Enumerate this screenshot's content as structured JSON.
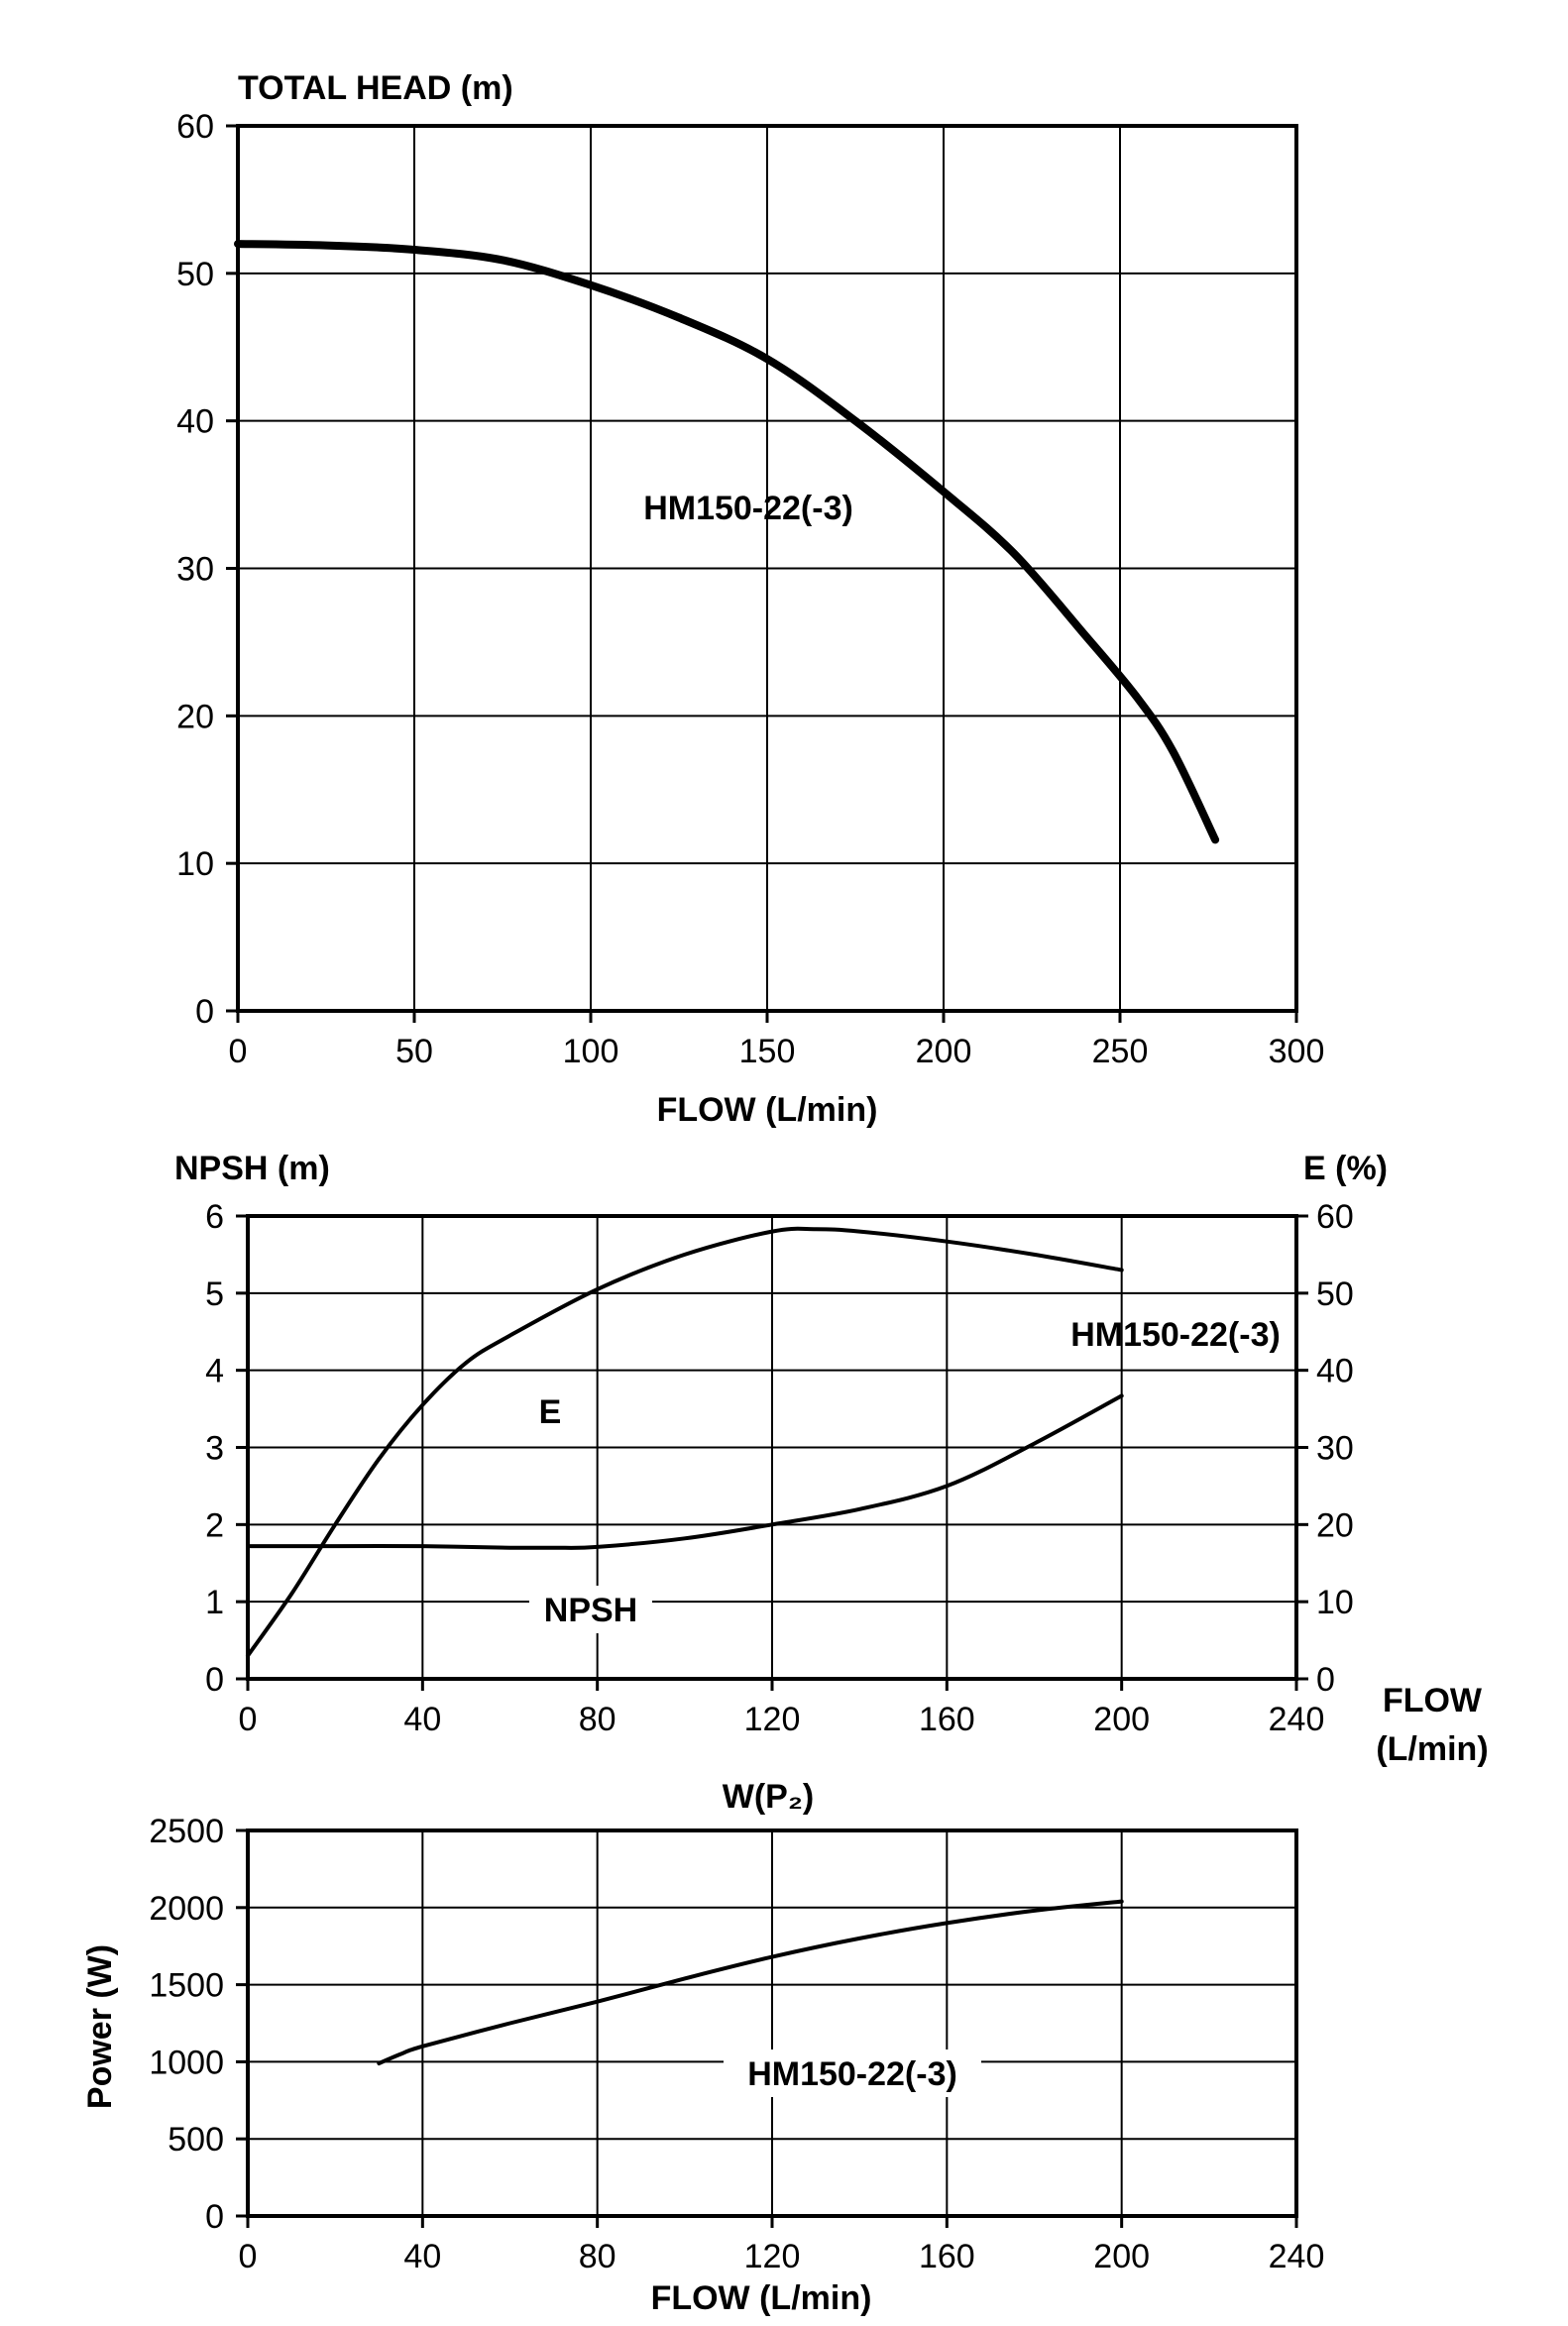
{
  "chart_data": [
    {
      "type": "line",
      "ylabel": "TOTAL HEAD (m)",
      "xlabel": "FLOW (L/min)",
      "xlim": [
        0,
        300
      ],
      "ylim": [
        0,
        60
      ],
      "xticks": [
        "0",
        "50",
        "100",
        "150",
        "200",
        "250",
        "300"
      ],
      "yticks": [
        "0",
        "10",
        "20",
        "30",
        "40",
        "50",
        "60"
      ],
      "grid": true,
      "series": [
        {
          "name": "HM150-22(-3)",
          "x": [
            0,
            25,
            50,
            75,
            100,
            125,
            150,
            175,
            200,
            220,
            240,
            255,
            265,
            277
          ],
          "y": [
            52,
            51.9,
            51.6,
            50.9,
            49.2,
            47.0,
            44.2,
            40.0,
            35.2,
            31.0,
            25.5,
            21.2,
            17.6,
            11.6
          ]
        }
      ]
    },
    {
      "type": "line",
      "ylabel": "NPSH (m)",
      "y2label": "E (%)",
      "xlabel": "FLOW",
      "xlabel_unit": "(L/min)",
      "xlim": [
        0,
        240
      ],
      "ylim": [
        0,
        6
      ],
      "y2lim": [
        0,
        60
      ],
      "xticks": [
        "0",
        "40",
        "80",
        "120",
        "160",
        "200",
        "240"
      ],
      "yticks": [
        "0",
        "1",
        "2",
        "3",
        "4",
        "5",
        "6"
      ],
      "y2ticks": [
        "0",
        "10",
        "20",
        "30",
        "40",
        "50",
        "60"
      ],
      "grid": true,
      "curve_label": "HM150-22(-3)",
      "series": [
        {
          "name": "E",
          "axis": "right",
          "x": [
            0,
            10,
            20,
            30,
            40,
            50,
            60,
            80,
            100,
            120,
            130,
            140,
            160,
            180,
            200
          ],
          "y": [
            3,
            11,
            20,
            28.5,
            35.5,
            41,
            44.5,
            50.5,
            55,
            58,
            58.3,
            58,
            56.7,
            55,
            53
          ]
        },
        {
          "name": "NPSH",
          "axis": "left",
          "x": [
            0,
            20,
            40,
            60,
            70,
            80,
            100,
            120,
            140,
            160,
            180,
            200
          ],
          "y": [
            1.72,
            1.72,
            1.72,
            1.7,
            1.7,
            1.71,
            1.82,
            2.0,
            2.2,
            2.5,
            3.05,
            3.67
          ]
        }
      ]
    },
    {
      "type": "line",
      "title": "W(P₂)",
      "ylabel": "Power (W)",
      "xlabel": "FLOW (L/min)",
      "xlim": [
        0,
        240
      ],
      "ylim": [
        0,
        2500
      ],
      "xticks": [
        "0",
        "40",
        "80",
        "120",
        "160",
        "200",
        "240"
      ],
      "yticks": [
        "0",
        "500",
        "1000",
        "1500",
        "2000",
        "2500"
      ],
      "grid": true,
      "series": [
        {
          "name": "HM150-22(-3)",
          "x": [
            30,
            35,
            40,
            60,
            80,
            100,
            120,
            140,
            160,
            180,
            200
          ],
          "y": [
            990,
            1050,
            1100,
            1250,
            1390,
            1540,
            1680,
            1800,
            1900,
            1980,
            2040
          ]
        }
      ]
    }
  ]
}
